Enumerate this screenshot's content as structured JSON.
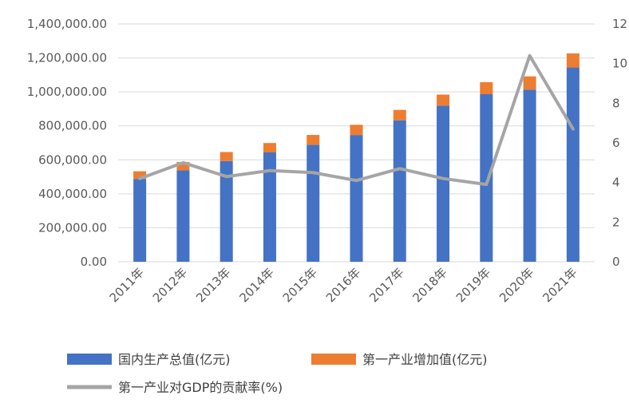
{
  "chart_data": {
    "type": "bar",
    "stacked": true,
    "categories": [
      "2011年",
      "2012年",
      "2013年",
      "2014年",
      "2015年",
      "2016年",
      "2017年",
      "2018年",
      "2019年",
      "2020年",
      "2021年"
    ],
    "series": [
      {
        "name": "国内生产总值(亿元)",
        "type": "bar",
        "axis": "left",
        "color": "#4472C4",
        "values": [
          487940,
          538580,
          592963,
          643563,
          688858,
          746395,
          832036,
          919281,
          986515,
          1013567,
          1143670
        ]
      },
      {
        "name": "第一产业增加值(亿元)",
        "type": "bar",
        "axis": "left",
        "color": "#ED7D31",
        "values": [
          44781,
          49085,
          53028,
          55626,
          57774,
          60139,
          62100,
          64745,
          70467,
          77754,
          83086
        ]
      },
      {
        "name": "第一产业对GDP的贡献率(%)",
        "type": "line",
        "axis": "right",
        "color": "#A5A5A5",
        "values": [
          4.2,
          5.0,
          4.3,
          4.6,
          4.5,
          4.1,
          4.7,
          4.2,
          3.9,
          10.4,
          6.7
        ]
      }
    ],
    "left_axis": {
      "ylim": [
        0,
        1400000
      ],
      "ticks": [
        0,
        200000,
        400000,
        600000,
        800000,
        1000000,
        1200000,
        1400000
      ],
      "tick_labels": [
        "0.00",
        "200,000.00",
        "400,000.00",
        "600,000.00",
        "800,000.00",
        "1,000,000.00",
        "1,200,000.00",
        "1,400,000.00"
      ]
    },
    "right_axis": {
      "ylim": [
        0,
        12
      ],
      "ticks": [
        0,
        2,
        4,
        6,
        8,
        10,
        12
      ],
      "tick_labels": [
        "0",
        "2",
        "4",
        "6",
        "8",
        "10",
        "12"
      ]
    },
    "grid": true,
    "legend_position": "bottom",
    "gridline_color": "#D9D9D9",
    "axis_label_color": "#595959"
  }
}
